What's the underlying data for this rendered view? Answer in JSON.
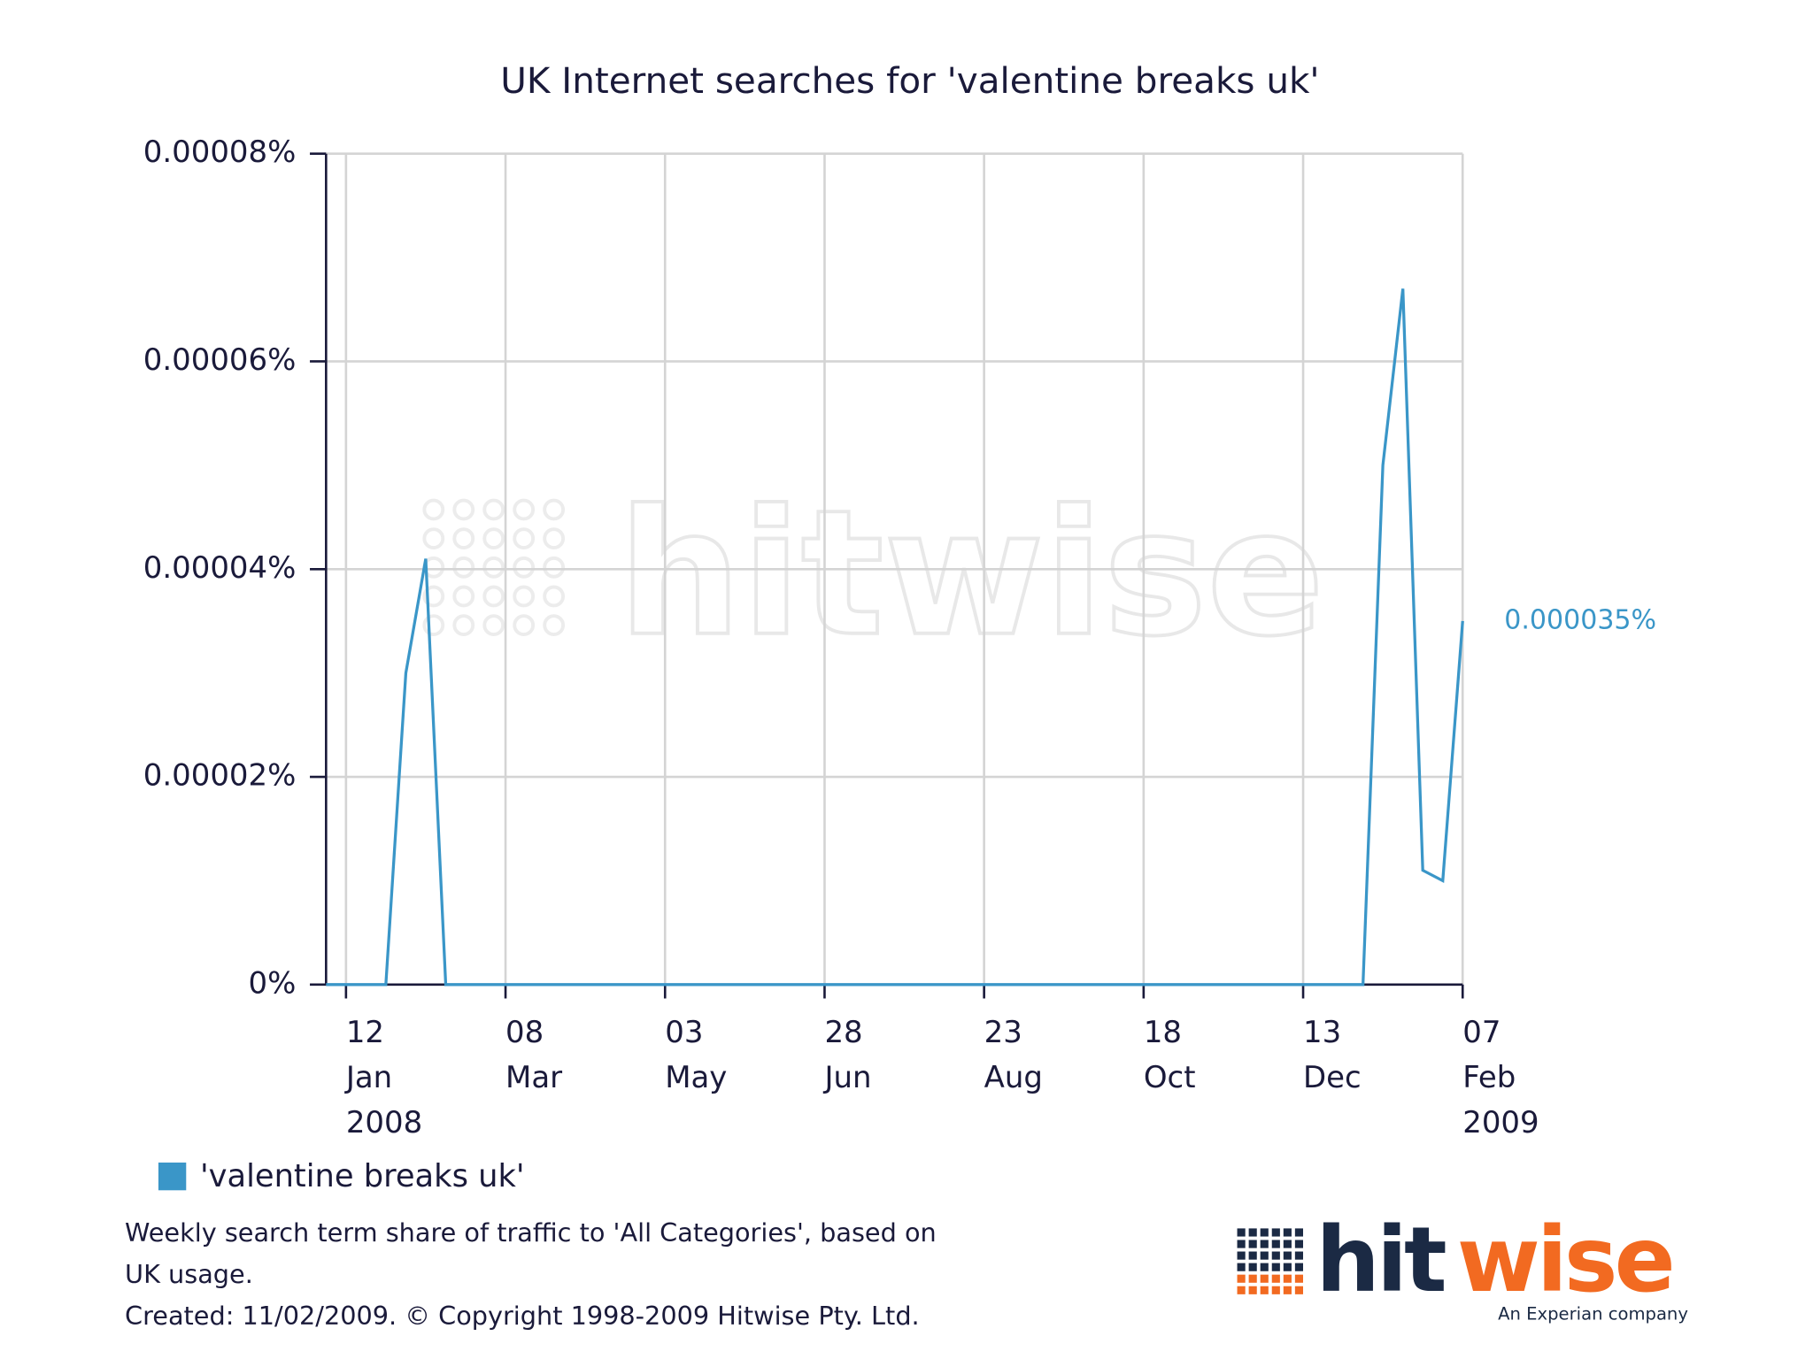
{
  "chart_data": {
    "type": "line",
    "title": "UK Internet searches for 'valentine breaks uk'",
    "x": [
      "2008-01-05",
      "2008-01-12",
      "2008-01-19",
      "2008-01-26",
      "2008-02-02",
      "2008-02-09",
      "2008-02-16",
      "2008-02-23",
      "2008-03-01",
      "2008-03-08",
      "2008-03-15",
      "2008-03-22",
      "2008-03-29",
      "2008-04-05",
      "2008-04-12",
      "2008-04-19",
      "2008-04-26",
      "2008-05-03",
      "2008-05-10",
      "2008-05-17",
      "2008-05-24",
      "2008-05-31",
      "2008-06-07",
      "2008-06-14",
      "2008-06-21",
      "2008-06-28",
      "2008-07-05",
      "2008-07-12",
      "2008-07-19",
      "2008-07-26",
      "2008-08-02",
      "2008-08-09",
      "2008-08-16",
      "2008-08-23",
      "2008-08-30",
      "2008-09-06",
      "2008-09-13",
      "2008-09-20",
      "2008-09-27",
      "2008-10-04",
      "2008-10-11",
      "2008-10-18",
      "2008-10-25",
      "2008-11-01",
      "2008-11-08",
      "2008-11-15",
      "2008-11-22",
      "2008-11-29",
      "2008-12-06",
      "2008-12-13",
      "2008-12-20",
      "2008-12-27",
      "2009-01-03",
      "2009-01-10",
      "2009-01-17",
      "2009-01-24",
      "2009-01-31",
      "2009-02-07"
    ],
    "series": [
      {
        "name": "'valentine breaks uk'",
        "color": "#3a96c8",
        "values": [
          0,
          0,
          0,
          0,
          3e-05,
          4.1e-05,
          0,
          0,
          0,
          0,
          0,
          0,
          0,
          0,
          0,
          0,
          0,
          0,
          0,
          0,
          0,
          0,
          0,
          0,
          0,
          0,
          0,
          0,
          0,
          0,
          0,
          0,
          0,
          0,
          0,
          0,
          0,
          0,
          0,
          0,
          0,
          0,
          0,
          0,
          0,
          0,
          0,
          0,
          0,
          0,
          0,
          0,
          0,
          5e-05,
          6.7e-05,
          1.1e-05,
          1e-05,
          3.5e-05
        ],
        "value_labels": [
          null,
          null,
          null,
          null,
          null,
          null,
          null,
          null,
          null,
          null,
          null,
          null,
          null,
          null,
          null,
          null,
          null,
          null,
          null,
          null,
          null,
          null,
          null,
          null,
          null,
          null,
          null,
          null,
          null,
          null,
          null,
          null,
          null,
          null,
          null,
          null,
          null,
          null,
          null,
          null,
          null,
          null,
          null,
          null,
          null,
          null,
          null,
          null,
          null,
          null,
          null,
          null,
          null,
          null,
          null,
          null,
          null,
          "0.000035%"
        ]
      }
    ],
    "xlim": [
      "2008-01-05",
      "2009-02-07"
    ],
    "xticks": [
      {
        "value": "2008-01-12",
        "label": "12 Jan 2008"
      },
      {
        "value": "2008-03-08",
        "label": "08 Mar"
      },
      {
        "value": "2008-05-03",
        "label": "03 May"
      },
      {
        "value": "2008-06-28",
        "label": "28 Jun"
      },
      {
        "value": "2008-08-23",
        "label": "23 Aug"
      },
      {
        "value": "2008-10-18",
        "label": "18 Oct"
      },
      {
        "value": "2008-12-13",
        "label": "13 Dec"
      },
      {
        "value": "2009-02-07",
        "label": "07 Feb 2009"
      }
    ],
    "ylim": [
      0,
      8e-05
    ],
    "yticks": [
      {
        "value": 0,
        "label": "0%"
      },
      {
        "value": 2e-05,
        "label": "0.00002%"
      },
      {
        "value": 4e-05,
        "label": "0.00004%"
      },
      {
        "value": 6e-05,
        "label": "0.00006%"
      },
      {
        "value": 8e-05,
        "label": "0.00008%"
      }
    ],
    "grid": true
  },
  "watermark": "hitwise",
  "footer": {
    "note": [
      "Weekly search term share of traffic to 'All Categories', based on",
      "UK usage."
    ],
    "created": "Created: 11/02/2009. © Copyright 1998-2009 Hitwise Pty. Ltd."
  },
  "logo": {
    "parts": [
      "hit",
      "wise"
    ],
    "tagline": "An Experian company"
  }
}
